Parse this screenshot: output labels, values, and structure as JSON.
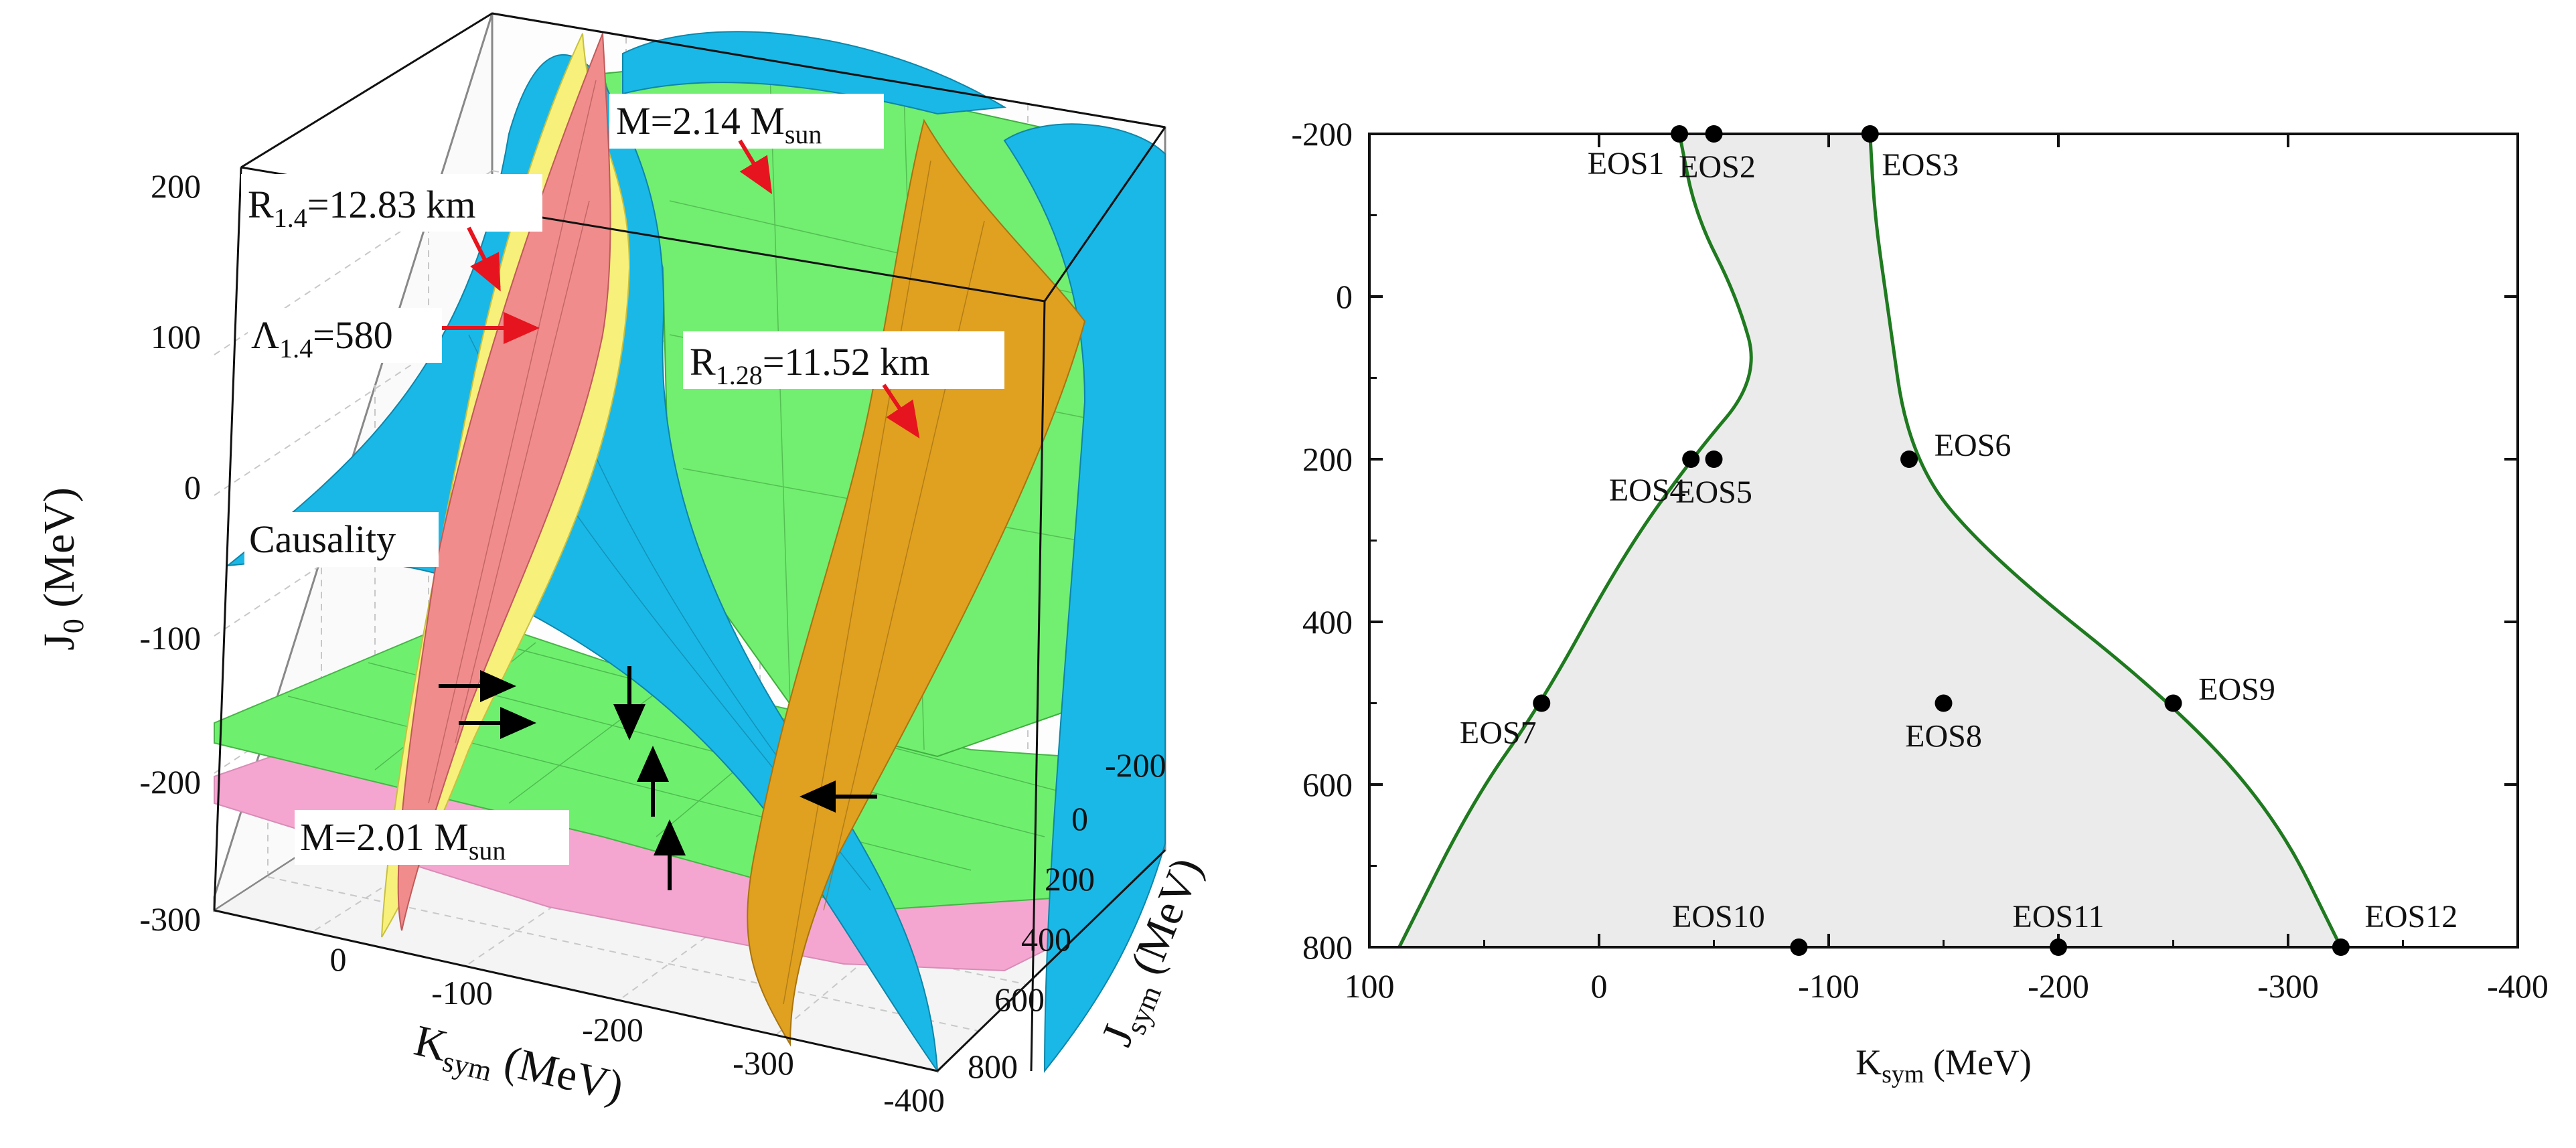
{
  "left": {
    "zlabel_base": "J",
    "zlabel_sub": "0",
    "zlabel_tail": " (MeV)",
    "xlabel_base": "K",
    "xlabel_sub": "sym",
    "xlabel_tail": " (MeV)",
    "ylabel_base": "J",
    "ylabel_sub": "sym",
    "ylabel_tail": " (MeV)",
    "z_ticks": [
      "200",
      "100",
      "0",
      "-100",
      "-200",
      "-300"
    ],
    "x_ticks": [
      "0",
      "-100",
      "-200",
      "-300",
      "-400"
    ],
    "y_ticks": [
      "-200",
      "0",
      "200",
      "400",
      "600",
      "800"
    ],
    "annotations": {
      "m214": {
        "pre": "M=2.14 M",
        "sub": "sun"
      },
      "r14": {
        "pre": "R",
        "sub": "1.4",
        "post": "=12.83 km"
      },
      "lambda14": {
        "pre": "Λ",
        "sub": "1.4",
        "post": "=580"
      },
      "r128": {
        "pre": "R",
        "sub": "1.28",
        "post": "=11.52 km"
      },
      "causality": "Causality",
      "m201": {
        "pre": "M=2.01 M",
        "sub": "sun"
      }
    },
    "colors": {
      "causality": "#1ab8e6",
      "mass_214": "#66ee66",
      "mass_201": "#f5a6d0",
      "r14": "#f08c8c",
      "lambda14": "#f7f07a",
      "r128": "#e0a020",
      "arrow_red": "#e6141e"
    }
  },
  "chart_data": [
    {
      "type": "surface",
      "description_axes": {
        "x": "K_sym (MeV)",
        "y": "J_sym (MeV)",
        "z": "J_0 (MeV)"
      },
      "xlim": [
        100,
        -400
      ],
      "ylim": [
        -200,
        800
      ],
      "zlim": [
        -300,
        200
      ],
      "surfaces": [
        "Causality",
        "M=2.14 M_sun",
        "M=2.01 M_sun",
        "R_1.4=12.83 km",
        "Λ_1.4=580",
        "R_1.28=11.52 km"
      ]
    },
    {
      "type": "scatter",
      "xlabel": "K_sym (MeV)",
      "ylabel": "J_sym (MeV)",
      "xlim": [
        100,
        -400
      ],
      "ylim": [
        -200,
        800
      ],
      "x_ticks": [
        100,
        0,
        -100,
        -200,
        -300,
        -400
      ],
      "y_ticks": [
        -200,
        0,
        200,
        400,
        600,
        800
      ],
      "grid": false,
      "region_color": "#ebebeb",
      "boundary_color": "#1f7a1f",
      "region_left": [
        [
          -35,
          -200
        ],
        [
          -42,
          -100
        ],
        [
          -60,
          0
        ],
        [
          -70,
          100
        ],
        [
          -40,
          200
        ],
        [
          -10,
          320
        ],
        [
          25,
          500
        ],
        [
          55,
          620
        ],
        [
          87,
          800
        ]
      ],
      "region_right": [
        [
          -118,
          -200
        ],
        [
          -120,
          -100
        ],
        [
          -125,
          0
        ],
        [
          -135,
          200
        ],
        [
          -170,
          320
        ],
        [
          -250,
          500
        ],
        [
          -295,
          640
        ],
        [
          -323,
          800
        ]
      ],
      "points": [
        {
          "label": "EOS1",
          "x": -35,
          "y": -200
        },
        {
          "label": "EOS2",
          "x": -50,
          "y": -200
        },
        {
          "label": "EOS3",
          "x": -118,
          "y": -200
        },
        {
          "label": "EOS4",
          "x": -40,
          "y": 200
        },
        {
          "label": "EOS5",
          "x": -50,
          "y": 200
        },
        {
          "label": "EOS6",
          "x": -135,
          "y": 200
        },
        {
          "label": "EOS7",
          "x": 25,
          "y": 500
        },
        {
          "label": "EOS8",
          "x": -150,
          "y": 500
        },
        {
          "label": "EOS9",
          "x": -250,
          "y": 500
        },
        {
          "label": "EOS10",
          "x": -87,
          "y": 800
        },
        {
          "label": "EOS11",
          "x": -200,
          "y": 800
        },
        {
          "label": "EOS12",
          "x": -323,
          "y": 800
        }
      ]
    }
  ]
}
